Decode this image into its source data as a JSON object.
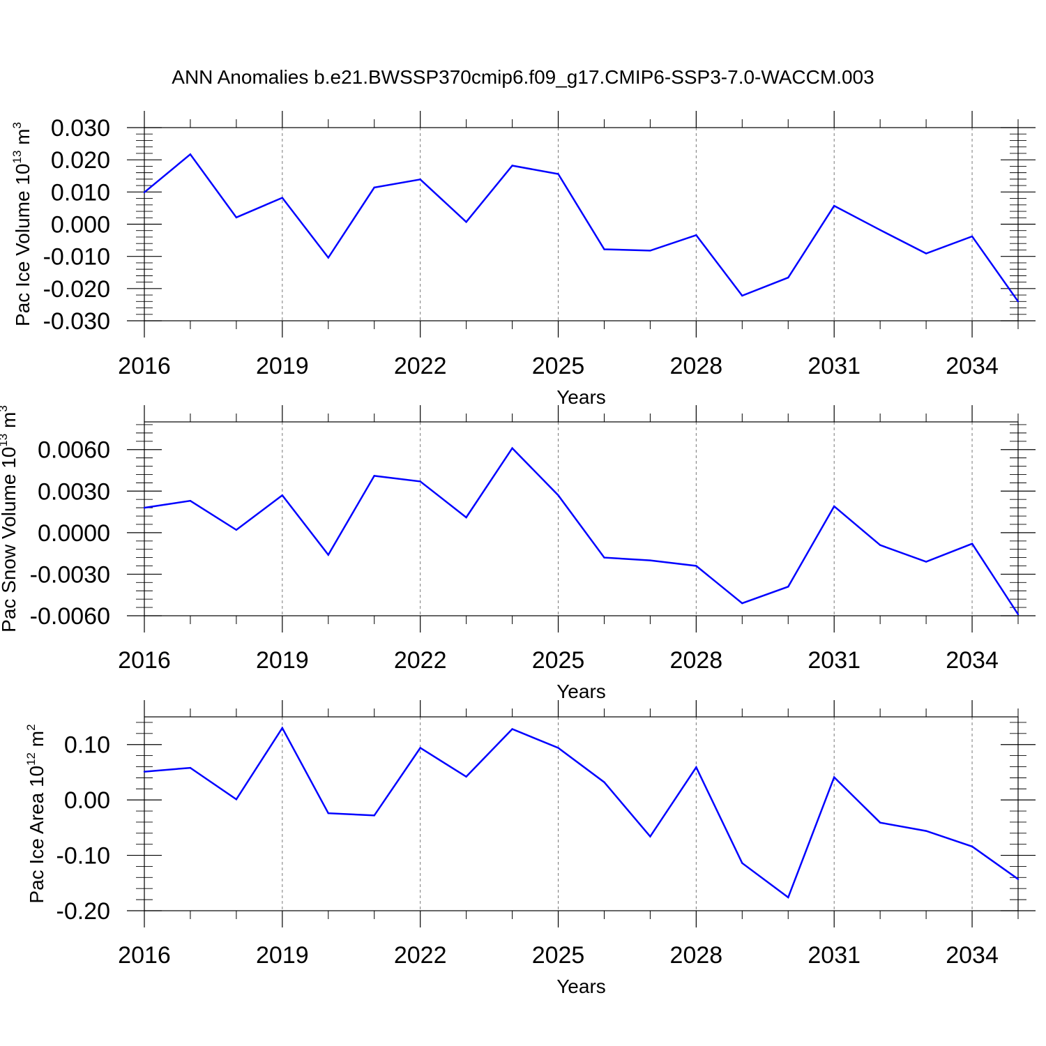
{
  "title": "ANN Anomalies b.e21.BWSSP370cmip6.f09_g17.CMIP6-SSP3-7.0-WACCM.003",
  "chart_data": [
    {
      "type": "line",
      "xlabel": "Years",
      "ylabel": {
        "prefix": "Pac Ice Volume 10",
        "exponent": "13",
        "unit_base": " m",
        "unit_exponent": "3"
      },
      "xlim": [
        2016,
        2035
      ],
      "ylim": [
        -0.03,
        0.03
      ],
      "xticks": [
        "2016",
        "2019",
        "2022",
        "2025",
        "2028",
        "2031",
        "2034"
      ],
      "xtick_values": [
        2016,
        2019,
        2022,
        2025,
        2028,
        2031,
        2034
      ],
      "yticks": [
        "-0.030",
        "-0.020",
        "-0.010",
        "0.000",
        "0.010",
        "0.020",
        "0.030"
      ],
      "ytick_values": [
        -0.03,
        -0.02,
        -0.01,
        0.0,
        0.01,
        0.02,
        0.03
      ],
      "grid": "vertical dashed at labeled years",
      "line_color": "#0000ff",
      "x": [
        2016,
        2017,
        2018,
        2019,
        2020,
        2021,
        2022,
        2023,
        2024,
        2025,
        2026,
        2027,
        2028,
        2029,
        2030,
        2031,
        2032,
        2033,
        2034,
        2035
      ],
      "values": [
        0.0099,
        0.0217,
        0.0021,
        0.0082,
        -0.0104,
        0.0114,
        0.0139,
        0.0007,
        0.0182,
        0.0156,
        -0.0078,
        -0.0082,
        -0.0034,
        -0.0222,
        -0.0166,
        0.0057,
        -0.0018,
        -0.0091,
        -0.0038,
        -0.024
      ]
    },
    {
      "type": "line",
      "xlabel": "Years",
      "ylabel": {
        "prefix": "Pac Snow Volume 10",
        "exponent": "13",
        "unit_base": " m",
        "unit_exponent": "3"
      },
      "xlim": [
        2016,
        2035
      ],
      "ylim": [
        -0.006,
        0.008
      ],
      "xticks": [
        "2016",
        "2019",
        "2022",
        "2025",
        "2028",
        "2031",
        "2034"
      ],
      "xtick_values": [
        2016,
        2019,
        2022,
        2025,
        2028,
        2031,
        2034
      ],
      "yticks": [
        "-0.0060",
        "-0.0030",
        "0.0000",
        "0.0030",
        "0.0060"
      ],
      "ytick_values": [
        -0.006,
        -0.003,
        0.0,
        0.003,
        0.006
      ],
      "grid": "vertical dashed at labeled years",
      "line_color": "#0000ff",
      "x": [
        2016,
        2017,
        2018,
        2019,
        2020,
        2021,
        2022,
        2023,
        2024,
        2025,
        2026,
        2027,
        2028,
        2029,
        2030,
        2031,
        2032,
        2033,
        2034,
        2035
      ],
      "values": [
        0.0018,
        0.0023,
        0.0002,
        0.0027,
        -0.0016,
        0.0041,
        0.0037,
        0.0011,
        0.0061,
        0.0027,
        -0.0018,
        -0.002,
        -0.0024,
        -0.0051,
        -0.0039,
        0.0019,
        -0.0009,
        -0.0021,
        -0.0008,
        -0.0059
      ]
    },
    {
      "type": "line",
      "xlabel": "Years",
      "ylabel": {
        "prefix": "Pac Ice Area 10",
        "exponent": "12",
        "unit_base": " m",
        "unit_exponent": "2"
      },
      "xlim": [
        2016,
        2035
      ],
      "ylim": [
        -0.2,
        0.15
      ],
      "xticks": [
        "2016",
        "2019",
        "2022",
        "2025",
        "2028",
        "2031",
        "2034"
      ],
      "xtick_values": [
        2016,
        2019,
        2022,
        2025,
        2028,
        2031,
        2034
      ],
      "yticks": [
        "-0.20",
        "-0.10",
        "0.00",
        "0.10"
      ],
      "ytick_values": [
        -0.2,
        -0.1,
        0.0,
        0.1
      ],
      "grid": "vertical dashed at labeled years",
      "line_color": "#0000ff",
      "x": [
        2016,
        2017,
        2018,
        2019,
        2020,
        2021,
        2022,
        2023,
        2024,
        2025,
        2026,
        2027,
        2028,
        2029,
        2030,
        2031,
        2032,
        2033,
        2034,
        2035
      ],
      "values": [
        0.051,
        0.058,
        0.001,
        0.13,
        -0.024,
        -0.028,
        0.094,
        0.042,
        0.128,
        0.094,
        0.032,
        -0.066,
        0.059,
        -0.114,
        -0.176,
        0.041,
        -0.041,
        -0.056,
        -0.084,
        -0.143
      ]
    }
  ]
}
